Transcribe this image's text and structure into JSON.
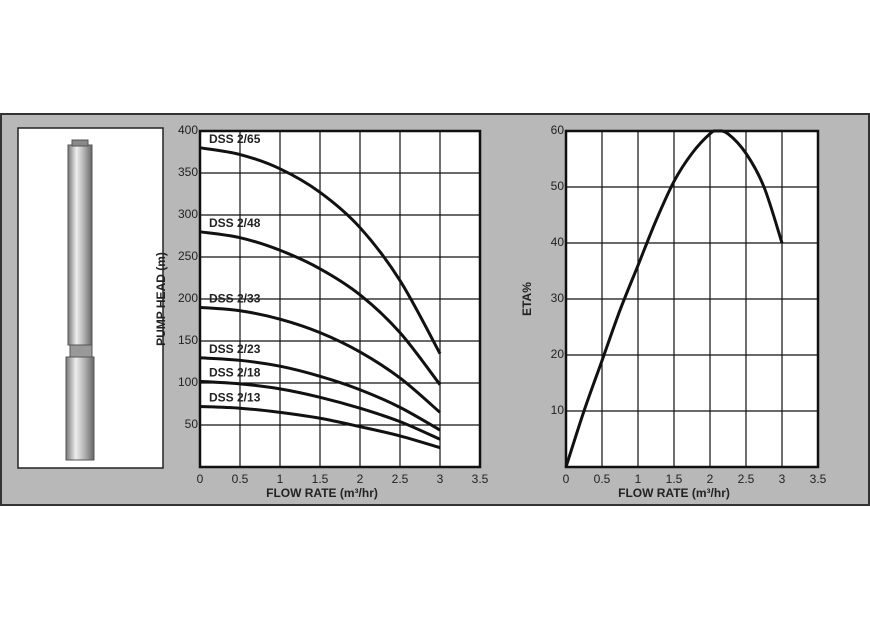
{
  "chart_data": [
    {
      "type": "line",
      "x": [
        0,
        0.5,
        1,
        1.5,
        2,
        2.5,
        3
      ],
      "series": [
        {
          "name": "DSS 2/65",
          "color": "#111111",
          "values": [
            380,
            372,
            355,
            327,
            285,
            222,
            135
          ]
        },
        {
          "name": "DSS 2/48",
          "color": "#111111",
          "values": [
            280,
            273,
            258,
            236,
            205,
            160,
            98
          ]
        },
        {
          "name": "DSS 2/33",
          "color": "#111111",
          "values": [
            190,
            186,
            176,
            160,
            137,
            106,
            65
          ]
        },
        {
          "name": "DSS 2/23",
          "color": "#111111",
          "values": [
            130,
            127,
            120,
            108,
            92,
            71,
            44
          ]
        },
        {
          "name": "DSS 2/18",
          "color": "#111111",
          "values": [
            102,
            99,
            93,
            83,
            70,
            54,
            33
          ]
        },
        {
          "name": "DSS 2/13",
          "color": "#111111",
          "values": [
            72,
            70,
            65,
            58,
            48,
            37,
            23
          ]
        }
      ],
      "x_label": "FLOW RATE (m³/hr)",
      "y_label": "PUMP HEAD (m)",
      "xlim": [
        0,
        3.5
      ],
      "xticks": [
        0,
        0.5,
        1,
        1.5,
        2,
        2.5,
        3,
        3.5
      ],
      "ylim": [
        0,
        400
      ],
      "yticks": [
        50,
        100,
        150,
        200,
        250,
        300,
        350,
        400
      ],
      "grid": true
    },
    {
      "type": "line",
      "x": [
        0,
        0.25,
        0.5,
        0.75,
        1,
        1.25,
        1.5,
        1.75,
        2,
        2.1,
        2.25,
        2.5,
        2.75,
        3
      ],
      "values": [
        0,
        10,
        19,
        28,
        36,
        44,
        51,
        56,
        59.5,
        60,
        59.5,
        56,
        50,
        40
      ],
      "color": "#111111",
      "x_label": "FLOW RATE (m³/hr)",
      "y_label": "ETA%",
      "xlim": [
        0,
        3.5
      ],
      "xticks": [
        0,
        0.5,
        1,
        1.5,
        2,
        2.5,
        3,
        3.5
      ],
      "ylim": [
        0,
        60
      ],
      "yticks": [
        10,
        20,
        30,
        40,
        50,
        60
      ],
      "grid": true
    }
  ]
}
